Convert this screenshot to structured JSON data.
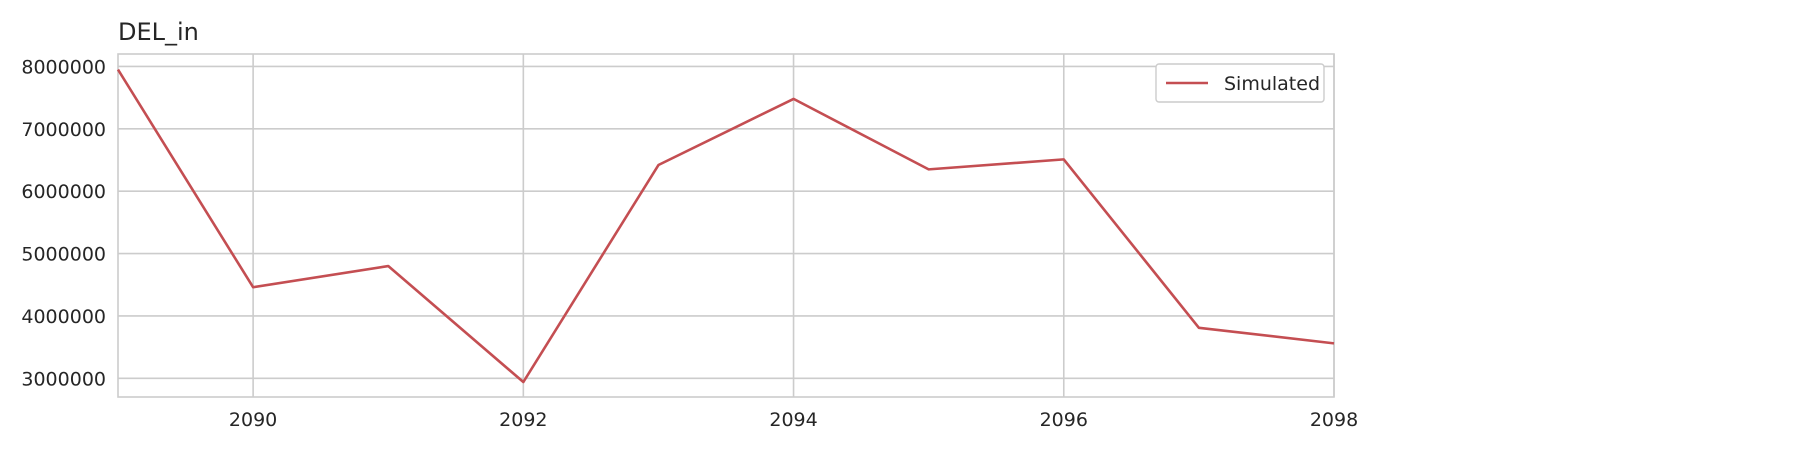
{
  "chart_data": {
    "type": "line",
    "title": "DEL_in",
    "xlabel": "",
    "ylabel": "",
    "x": [
      2089,
      2090,
      2091,
      2092,
      2093,
      2094,
      2095,
      2096,
      2097,
      2098
    ],
    "series": [
      {
        "name": "Simulated",
        "color": "#c44e52",
        "values": [
          7950000,
          4460000,
          4800000,
          2940000,
          6420000,
          7480000,
          6350000,
          6510000,
          3810000,
          3560000
        ]
      }
    ],
    "xlim": [
      2089,
      2098
    ],
    "ylim": [
      2700000,
      8200000
    ],
    "xticks": [
      2090,
      2092,
      2094,
      2096,
      2098
    ],
    "yticks": [
      3000000,
      4000000,
      5000000,
      6000000,
      7000000,
      8000000
    ],
    "xtick_labels": [
      "2090",
      "2092",
      "2094",
      "2096",
      "2098"
    ],
    "ytick_labels": [
      "3000000",
      "4000000",
      "5000000",
      "6000000",
      "7000000",
      "8000000"
    ],
    "grid": true,
    "legend_position": "top-right",
    "gridline_color": "#cccccc",
    "background_color": "#ffffff"
  }
}
